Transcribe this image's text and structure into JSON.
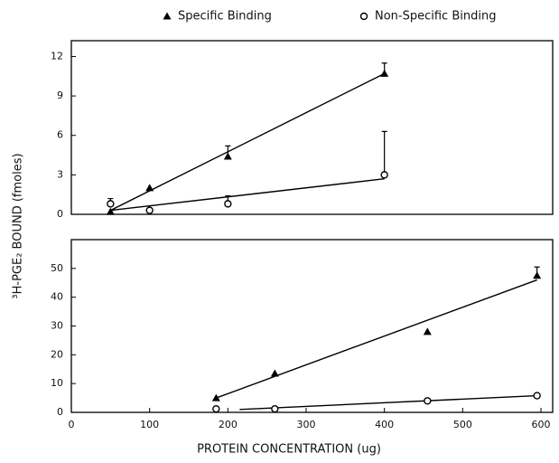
{
  "chart_data": [
    {
      "type": "scatter",
      "ylabel": "³H-PGE₂ BOUND (fmoles)",
      "xlim": [
        0,
        615
      ],
      "ylim": [
        0,
        13.2
      ],
      "yticks": [
        0,
        3,
        6,
        9,
        12
      ],
      "series": [
        {
          "name": "Specific Binding",
          "marker": "triangle",
          "color": "#000",
          "x": [
            50,
            100,
            200,
            400
          ],
          "values": [
            0.2,
            2.0,
            4.4,
            10.7
          ],
          "errors": [
            null,
            null,
            0.8,
            0.8
          ]
        },
        {
          "name": "Non-Specific Binding",
          "marker": "circle",
          "color": "#000",
          "x": [
            50,
            100,
            200,
            400
          ],
          "values": [
            0.8,
            0.3,
            0.8,
            3.0
          ],
          "errors": [
            0.4,
            null,
            0.6,
            3.3
          ]
        }
      ],
      "fit_lines": [
        {
          "x": [
            50,
            400
          ],
          "values": [
            0.3,
            10.7
          ]
        },
        {
          "x": [
            50,
            400
          ],
          "values": [
            0.3,
            2.7
          ]
        }
      ]
    },
    {
      "type": "scatter",
      "xlabel": "PROTEIN CONCENTRATION (ug)",
      "xlim": [
        0,
        615
      ],
      "xticks": [
        0,
        100,
        200,
        300,
        400,
        500,
        600
      ],
      "ylim": [
        0,
        60
      ],
      "yticks": [
        0,
        10,
        20,
        30,
        40,
        50
      ],
      "series": [
        {
          "marker": "triangle",
          "color": "#000",
          "x": [
            185,
            260,
            455,
            595
          ],
          "values": [
            5,
            13.5,
            28,
            47.5
          ],
          "errors": [
            null,
            null,
            null,
            3
          ]
        },
        {
          "marker": "circle",
          "color": "#000",
          "x": [
            185,
            260,
            455,
            595
          ],
          "values": [
            1.2,
            1.2,
            4,
            5.8
          ],
          "errors": [
            null,
            null,
            null,
            null
          ]
        }
      ],
      "fit_lines": [
        {
          "x": [
            185,
            595
          ],
          "values": [
            5,
            46
          ]
        },
        {
          "x": [
            215,
            595
          ],
          "values": [
            1,
            5.8
          ]
        }
      ]
    }
  ]
}
